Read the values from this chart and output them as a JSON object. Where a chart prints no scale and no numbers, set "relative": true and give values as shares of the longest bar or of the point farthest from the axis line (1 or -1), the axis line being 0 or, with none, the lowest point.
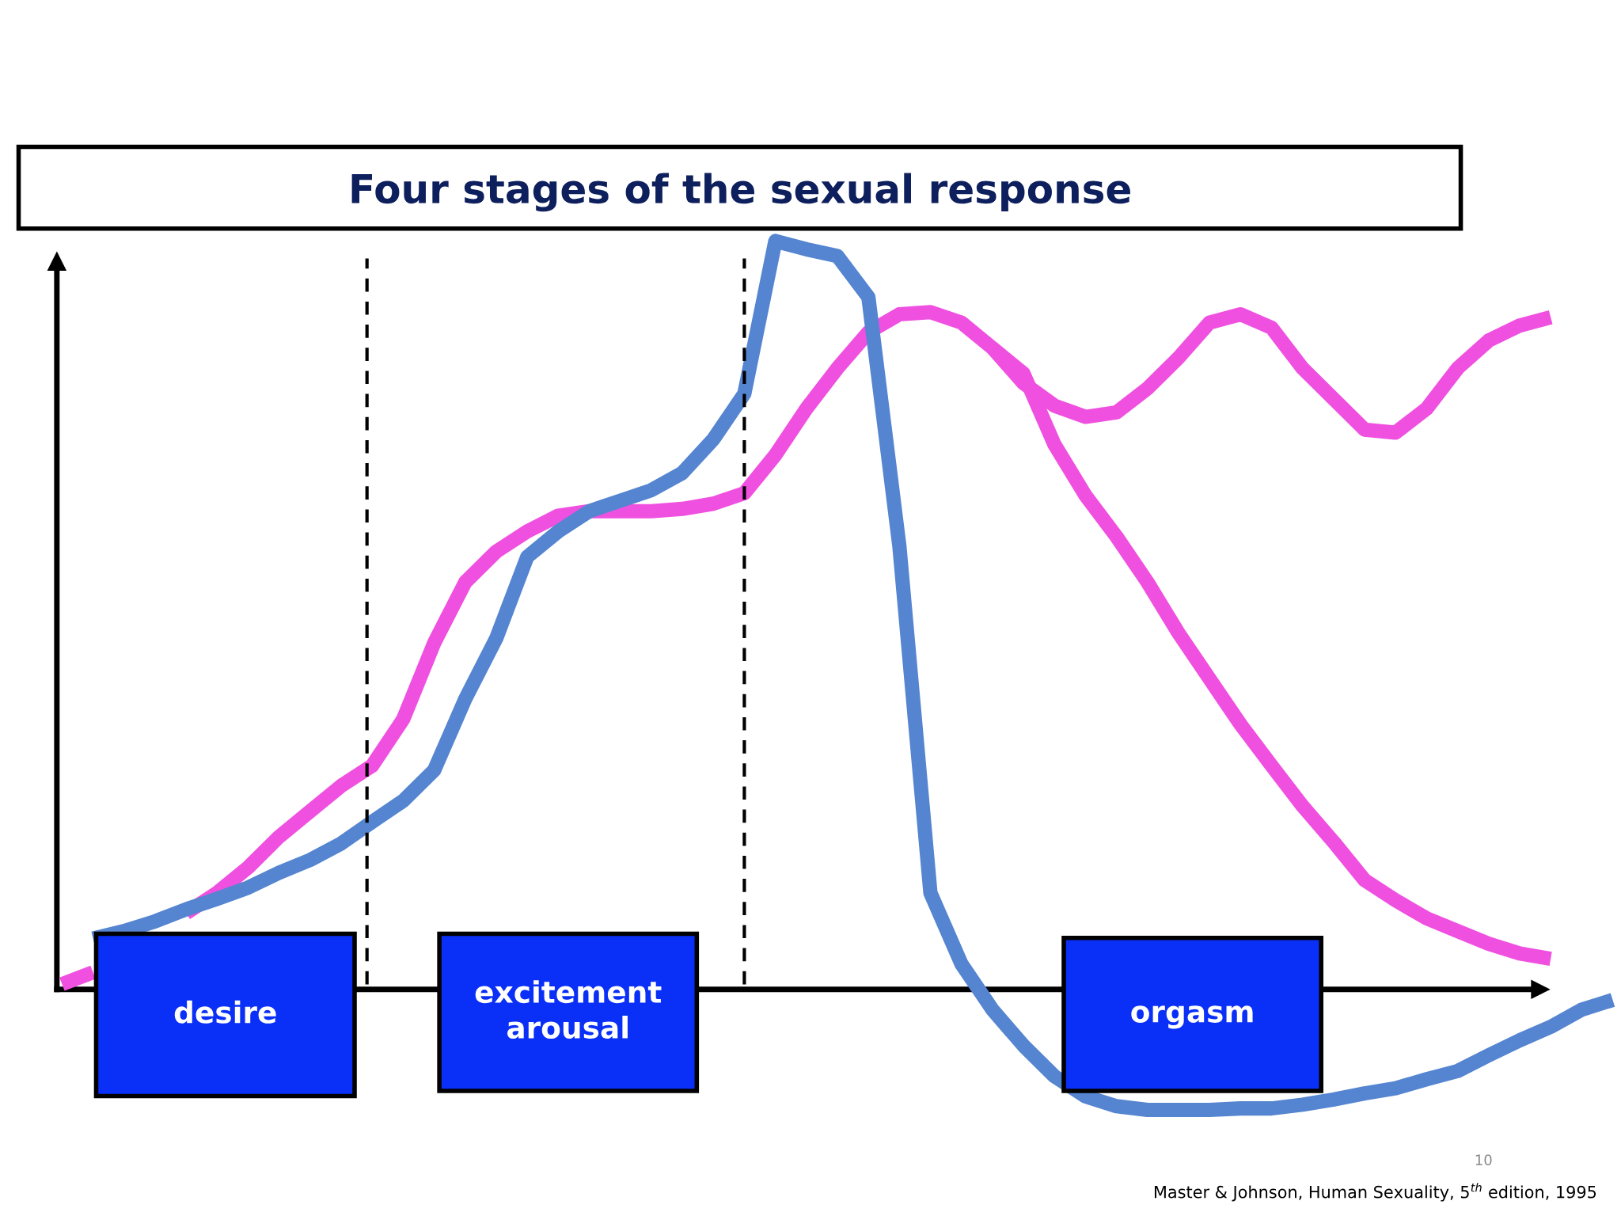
{
  "chart_data": {
    "type": "line",
    "relative": true,
    "title": "Four stages of the sexual response",
    "categories": [
      null,
      null,
      null,
      null,
      null,
      null,
      null,
      null,
      null,
      null,
      null,
      null,
      null,
      null,
      null,
      null,
      null,
      null,
      null,
      null,
      null,
      null,
      null,
      null,
      null,
      null,
      null,
      null,
      null,
      null,
      null,
      null,
      null,
      null,
      null,
      null,
      null,
      null,
      null,
      null,
      null,
      null,
      null,
      null,
      null,
      null,
      null,
      null,
      null,
      null,
      null
    ],
    "series": [
      {
        "color": "#5585d0",
        "values": [
          null,
          0.068,
          0.078,
          0.091,
          0.107,
          0.121,
          0.136,
          0.156,
          0.173,
          0.195,
          0.224,
          0.252,
          0.293,
          0.388,
          0.469,
          0.578,
          0.612,
          0.639,
          0.653,
          0.667,
          0.69,
          0.735,
          0.796,
          1.0,
          0.989,
          0.98,
          0.925,
          0.592,
          0.129,
          0.034,
          -0.027,
          -0.075,
          -0.116,
          -0.143,
          -0.156,
          -0.161,
          -0.161,
          -0.161,
          -0.159,
          -0.159,
          -0.154,
          -0.147,
          -0.139,
          -0.132,
          -0.12,
          -0.109,
          -0.088,
          -0.068,
          -0.05,
          -0.027,
          -0.014
        ]
      },
      {
        "color": "#f050e0",
        "values": [
          0.007,
          0.023,
          null,
          null,
          0.102,
          0.129,
          0.163,
          0.204,
          0.238,
          0.272,
          0.299,
          0.361,
          0.463,
          0.544,
          0.585,
          0.612,
          0.633,
          0.639,
          0.639,
          0.639,
          0.642,
          0.649,
          0.663,
          0.714,
          0.776,
          0.83,
          0.878,
          0.902,
          0.905,
          0.891,
          0.857,
          0.81,
          0.78,
          0.765,
          0.771,
          0.803,
          0.844,
          0.891,
          0.902,
          0.884,
          0.83,
          0.789,
          0.748,
          0.744,
          0.776,
          0.83,
          0.867,
          0.887,
          0.898,
          null,
          null
        ]
      },
      {
        "color": "#f050e0",
        "values": [
          null,
          null,
          null,
          null,
          null,
          null,
          null,
          null,
          null,
          null,
          null,
          null,
          null,
          null,
          null,
          null,
          null,
          null,
          null,
          null,
          null,
          null,
          null,
          null,
          null,
          null,
          null,
          null,
          null,
          null,
          0.857,
          0.823,
          0.728,
          0.66,
          0.605,
          0.544,
          0.476,
          0.415,
          0.354,
          0.299,
          0.245,
          0.197,
          0.146,
          0.119,
          0.095,
          0.078,
          0.061,
          0.048,
          0.041,
          null,
          null
        ]
      }
    ],
    "annotations": [
      "desire",
      "excitement\narousal",
      "orgasm",
      "10",
      "Master & Johnson, Human Sexuality, 5$^{th}$ edition, 1995"
    ]
  }
}
